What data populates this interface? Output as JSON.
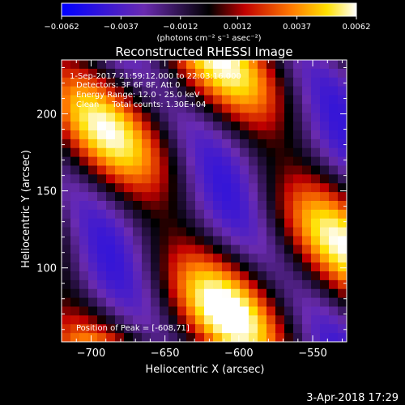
{
  "chart_data": {
    "type": "heatmap",
    "title": "Reconstructed RHESSI Image",
    "colorbar": {
      "ticks": [
        "-0.0062",
        "-0.0037",
        "-0.0012",
        "0.0012",
        "0.0037",
        "0.0062"
      ],
      "tick_values": [
        -0.0062,
        -0.0037,
        -0.0012,
        0.0012,
        0.0037,
        0.0062
      ],
      "unit_label": "(photons cm⁻² s⁻¹ asec⁻²)",
      "range": [
        -0.0062,
        0.0062
      ],
      "colormap": [
        "#0000ff",
        "#6a2bb0",
        "#000000",
        "#c00000",
        "#ff7a00",
        "#ffe000",
        "#ffffff"
      ]
    },
    "xlabel": "Heliocentric X (arcsec)",
    "ylabel": "Heliocentric Y (arcsec)",
    "xlim": [
      -720,
      -527
    ],
    "ylim": [
      52,
      235
    ],
    "xticks": [
      -700,
      -650,
      -600,
      -550
    ],
    "xtick_labels": [
      "−700",
      "−650",
      "−600",
      "−550"
    ],
    "yticks": [
      100,
      150,
      200
    ],
    "ytick_labels": [
      "100",
      "150",
      "200"
    ],
    "annotations": [
      "1-Sep-2017 21:59:12.000 to 22:03:16.000",
      "Detectors: 3F 6F 8F, Att 0",
      "Energy Range: 12.0 - 25.0 keV",
      "Clean     Total counts: 1.30E+04"
    ],
    "peak_label": "Position of Peak = [-608,71]",
    "peak_position": [
      -608,
      71
    ],
    "grid": false
  },
  "footer": {
    "date": "3-Apr-2018 17:29"
  }
}
